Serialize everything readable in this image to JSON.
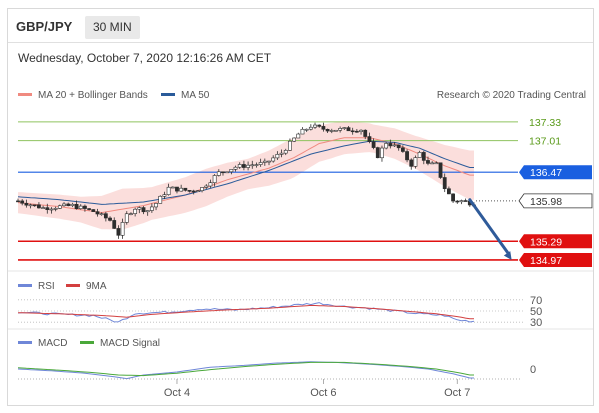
{
  "header": {
    "symbol": "GBP/JPY",
    "timeframe": "30 MIN",
    "datetime": "Wednesday, October 7, 2020 12:16:26 AM CET"
  },
  "colors": {
    "candle": "#2d2d2d",
    "bollinger_fill": "#f9d3d0",
    "ma20": "#f08a80",
    "ma50": "#2a5b9a",
    "green_level": "#8fc35f",
    "green_text": "#5a9a1a",
    "blue_level": "#1a5fe0",
    "red_level": "#e01010",
    "arrow": "#2f5b9a",
    "rsi": "#6f87d8",
    "rsi_ma": "#d33f3f",
    "macd": "#6f87d8",
    "macd_signal": "#4aa83a"
  },
  "chart_data": {
    "type": "candlestick",
    "credit": "Research © 2020 Trading Central",
    "legend": [
      {
        "key": "bollinger",
        "label": "MA 20 + Bollinger Bands",
        "color": "#f08a80"
      },
      {
        "key": "ma50",
        "label": "MA 50",
        "color": "#2a5b9a"
      }
    ],
    "ylim": [
      134.85,
      137.55
    ],
    "x_ticks": [
      "Oct 4",
      "Oct 6",
      "Oct 7"
    ],
    "x_tick_index": [
      38,
      73,
      105
    ],
    "num_candles": 110,
    "close_path": [
      [
        0,
        135.98
      ],
      [
        6,
        135.86
      ],
      [
        13,
        135.9
      ],
      [
        18,
        135.8
      ],
      [
        22,
        135.65
      ],
      [
        24,
        135.41
      ],
      [
        26,
        135.74
      ],
      [
        28,
        135.86
      ],
      [
        31,
        135.82
      ],
      [
        33,
        135.94
      ],
      [
        36,
        136.2
      ],
      [
        41,
        136.15
      ],
      [
        44,
        136.2
      ],
      [
        48,
        136.46
      ],
      [
        52,
        136.56
      ],
      [
        56,
        136.6
      ],
      [
        59,
        136.62
      ],
      [
        63,
        136.8
      ],
      [
        67,
        137.12
      ],
      [
        70,
        137.26
      ],
      [
        73,
        137.21
      ],
      [
        76,
        137.2
      ],
      [
        79,
        137.2
      ],
      [
        82,
        137.2
      ],
      [
        84,
        136.96
      ],
      [
        86,
        136.75
      ],
      [
        88,
        136.98
      ],
      [
        91,
        136.88
      ],
      [
        94,
        136.6
      ],
      [
        96,
        136.8
      ],
      [
        98,
        136.6
      ],
      [
        100,
        136.6
      ],
      [
        102,
        136.2
      ],
      [
        104,
        135.98
      ],
      [
        106,
        135.98
      ],
      [
        108,
        135.95
      ]
    ],
    "ma20_path": [
      [
        0,
        135.95
      ],
      [
        10,
        135.88
      ],
      [
        20,
        135.78
      ],
      [
        30,
        135.9
      ],
      [
        40,
        136.08
      ],
      [
        50,
        136.34
      ],
      [
        60,
        136.54
      ],
      [
        66,
        136.72
      ],
      [
        72,
        136.96
      ],
      [
        78,
        137.06
      ],
      [
        84,
        137.06
      ],
      [
        90,
        136.96
      ],
      [
        96,
        136.78
      ],
      [
        102,
        136.58
      ],
      [
        108,
        136.42
      ]
    ],
    "bb_band_width": [
      [
        0,
        0.18
      ],
      [
        15,
        0.22
      ],
      [
        25,
        0.35
      ],
      [
        32,
        0.28
      ],
      [
        45,
        0.32
      ],
      [
        55,
        0.26
      ],
      [
        65,
        0.34
      ],
      [
        75,
        0.3
      ],
      [
        85,
        0.24
      ],
      [
        95,
        0.28
      ],
      [
        108,
        0.42
      ]
    ],
    "ma50_path": [
      [
        0,
        136.05
      ],
      [
        10,
        136.0
      ],
      [
        20,
        135.92
      ],
      [
        30,
        135.96
      ],
      [
        40,
        136.08
      ],
      [
        50,
        136.27
      ],
      [
        60,
        136.5
      ],
      [
        70,
        136.78
      ],
      [
        78,
        136.92
      ],
      [
        84,
        137.0
      ],
      [
        90,
        136.98
      ],
      [
        96,
        136.88
      ],
      [
        102,
        136.7
      ],
      [
        108,
        136.55
      ]
    ],
    "levels": [
      {
        "label": "137.33",
        "value": 137.33,
        "style": "green"
      },
      {
        "label": "137.01",
        "value": 137.01,
        "style": "green"
      },
      {
        "label": "136.47",
        "value": 136.47,
        "style": "blue"
      },
      {
        "label": "135.98",
        "value": 135.98,
        "style": "current"
      },
      {
        "label": "135.29",
        "value": 135.29,
        "style": "red"
      },
      {
        "label": "134.97",
        "value": 134.97,
        "style": "red"
      }
    ],
    "forecast_arrow": {
      "from": [
        108,
        136.0
      ],
      "to": [
        118,
        134.97
      ]
    },
    "rsi": {
      "legend": [
        {
          "key": "rsi",
          "label": "RSI",
          "color": "#6f87d8"
        },
        {
          "key": "rsi_ma",
          "label": "9MA",
          "color": "#d33f3f"
        }
      ],
      "ylim": [
        25,
        75
      ],
      "ticks": [
        "70",
        "50",
        "30"
      ],
      "tick_values": [
        70,
        50,
        30
      ],
      "rsi_path": [
        [
          0,
          48
        ],
        [
          10,
          44
        ],
        [
          18,
          42
        ],
        [
          24,
          30
        ],
        [
          28,
          46
        ],
        [
          36,
          48
        ],
        [
          44,
          54
        ],
        [
          52,
          52
        ],
        [
          60,
          56
        ],
        [
          68,
          62
        ],
        [
          72,
          64
        ],
        [
          78,
          58
        ],
        [
          84,
          55
        ],
        [
          90,
          50
        ],
        [
          96,
          45
        ],
        [
          102,
          42
        ],
        [
          105,
          34
        ],
        [
          108,
          32
        ]
      ],
      "ma_path": [
        [
          0,
          47
        ],
        [
          10,
          45
        ],
        [
          20,
          42
        ],
        [
          26,
          39
        ],
        [
          32,
          44
        ],
        [
          40,
          48
        ],
        [
          50,
          52
        ],
        [
          60,
          55
        ],
        [
          70,
          60
        ],
        [
          78,
          58
        ],
        [
          86,
          54
        ],
        [
          94,
          49
        ],
        [
          100,
          45
        ],
        [
          105,
          40
        ],
        [
          108,
          36
        ]
      ]
    },
    "macd": {
      "legend": [
        {
          "key": "macd",
          "label": "MACD",
          "color": "#6f87d8"
        },
        {
          "key": "signal",
          "label": "MACD Signal",
          "color": "#4aa83a"
        }
      ],
      "ylim": [
        -0.2,
        0.3
      ],
      "ticks": [
        "0"
      ],
      "tick_values": [
        0
      ],
      "macd_path": [
        [
          0,
          0.0
        ],
        [
          8,
          -0.03
        ],
        [
          16,
          -0.07
        ],
        [
          22,
          -0.12
        ],
        [
          26,
          -0.16
        ],
        [
          30,
          -0.1
        ],
        [
          38,
          -0.05
        ],
        [
          46,
          0.03
        ],
        [
          54,
          0.06
        ],
        [
          62,
          0.1
        ],
        [
          70,
          0.12
        ],
        [
          76,
          0.11
        ],
        [
          84,
          0.08
        ],
        [
          92,
          0.04
        ],
        [
          98,
          0.0
        ],
        [
          104,
          -0.08
        ],
        [
          108,
          -0.15
        ]
      ],
      "signal_path": [
        [
          0,
          0.02
        ],
        [
          10,
          -0.02
        ],
        [
          18,
          -0.06
        ],
        [
          24,
          -0.1
        ],
        [
          30,
          -0.11
        ],
        [
          38,
          -0.07
        ],
        [
          46,
          -0.01
        ],
        [
          54,
          0.04
        ],
        [
          62,
          0.08
        ],
        [
          70,
          0.11
        ],
        [
          78,
          0.11
        ],
        [
          86,
          0.08
        ],
        [
          94,
          0.04
        ],
        [
          100,
          0.0
        ],
        [
          106,
          -0.07
        ],
        [
          108,
          -0.1
        ]
      ]
    }
  }
}
